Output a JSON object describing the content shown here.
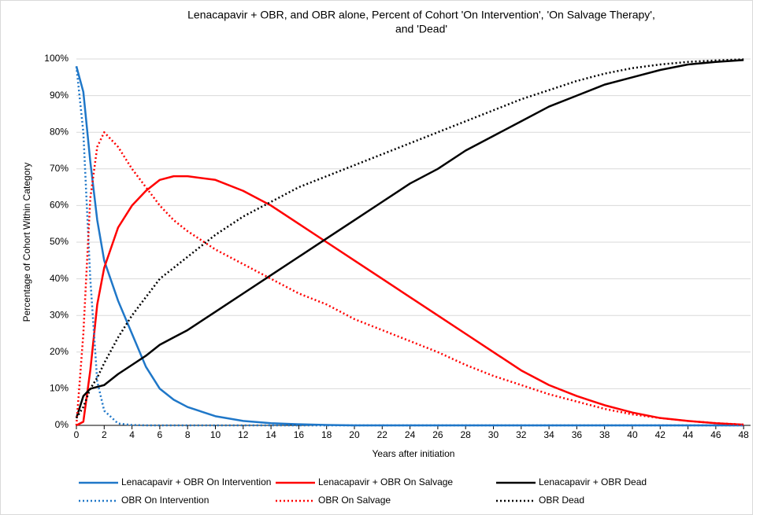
{
  "chart_data": {
    "type": "line",
    "title": [
      "Lenacapavir + OBR, and OBR alone, Percent of Cohort 'On Intervention', 'On Salvage Therapy',",
      "and 'Dead'"
    ],
    "x_label": "Years after initiation",
    "y_label": "Percentage of Cohort Within Category",
    "x": [
      0,
      0.5,
      1,
      1.5,
      2,
      3,
      4,
      5,
      6,
      7,
      8,
      10,
      12,
      14,
      16,
      18,
      20,
      22,
      24,
      26,
      28,
      30,
      32,
      34,
      36,
      38,
      40,
      42,
      44,
      46,
      48
    ],
    "series": [
      {
        "name": "Lenacapavir + OBR On Intervention",
        "color": "#1f77c8",
        "style": "solid",
        "values": [
          98,
          91,
          72,
          56,
          45,
          34,
          25,
          16,
          10,
          7,
          5,
          2.5,
          1.2,
          0.6,
          0.3,
          0.1,
          0,
          0,
          0,
          0,
          0,
          0,
          0,
          0,
          0,
          0,
          0,
          0,
          0,
          0,
          0
        ]
      },
      {
        "name": "Lenacapavir + OBR On Salvage",
        "color": "#ff0000",
        "style": "solid",
        "values": [
          0,
          1,
          15,
          33,
          43,
          54,
          60,
          64,
          67,
          68,
          68,
          67,
          64,
          60,
          55,
          50,
          45,
          40,
          35,
          30,
          25,
          20,
          15,
          11,
          8,
          5.5,
          3.5,
          2,
          1.2,
          0.6,
          0.2
        ]
      },
      {
        "name": "Lenacapavir + OBR Dead",
        "color": "#000000",
        "style": "solid",
        "values": [
          2,
          8,
          10,
          10.5,
          11,
          14,
          16.5,
          19,
          22,
          24,
          26,
          31,
          36,
          41,
          46,
          51,
          56,
          61,
          66,
          70,
          75,
          79,
          83,
          87,
          90,
          93,
          95,
          97,
          98.5,
          99.2,
          99.7
        ]
      },
      {
        "name": "OBR On Intervention",
        "color": "#1f77c8",
        "style": "dotted",
        "values": [
          98,
          80,
          40,
          12,
          4,
          0.5,
          0.1,
          0,
          0,
          0,
          0,
          0,
          0,
          0,
          0,
          0,
          0,
          0,
          0,
          0,
          0,
          0,
          0,
          0,
          0,
          0,
          0,
          0,
          0,
          0,
          0
        ]
      },
      {
        "name": "OBR On Salvage",
        "color": "#ff0000",
        "style": "dotted",
        "values": [
          0,
          25,
          62,
          76,
          80,
          76,
          70,
          65,
          60,
          56,
          53,
          48,
          44,
          40,
          36,
          33,
          29,
          26,
          23,
          20,
          16.5,
          13.5,
          11,
          8.5,
          6.5,
          4.5,
          3,
          2,
          1.2,
          0.6,
          0.2
        ]
      },
      {
        "name": "OBR Dead",
        "color": "#000000",
        "style": "dotted",
        "values": [
          2,
          5,
          10,
          13,
          17,
          24,
          30,
          35,
          40,
          43,
          46,
          52,
          57,
          61,
          65,
          68,
          71,
          74,
          77,
          80,
          83,
          86,
          89,
          91.5,
          94,
          96,
          97.5,
          98.5,
          99.2,
          99.6,
          99.9
        ]
      }
    ],
    "xlim": [
      0,
      48.5
    ],
    "xticks": [
      0,
      2,
      4,
      6,
      8,
      10,
      12,
      14,
      16,
      18,
      20,
      22,
      24,
      26,
      28,
      30,
      32,
      34,
      36,
      38,
      40,
      42,
      44,
      46,
      48
    ],
    "ylim": [
      0,
      100
    ],
    "yticks": [
      {
        "value": 0,
        "label": "0%"
      },
      {
        "value": 10,
        "label": "10%"
      },
      {
        "value": 20,
        "label": "20%"
      },
      {
        "value": 30,
        "label": "30%"
      },
      {
        "value": 40,
        "label": "40%"
      },
      {
        "value": 50,
        "label": "50%"
      },
      {
        "value": 60,
        "label": "60%"
      },
      {
        "value": 70,
        "label": "70%"
      },
      {
        "value": 80,
        "label": "80%"
      },
      {
        "value": 90,
        "label": "90%"
      },
      {
        "value": 100,
        "label": "100%"
      }
    ],
    "grid": true,
    "legend": "bottom"
  }
}
